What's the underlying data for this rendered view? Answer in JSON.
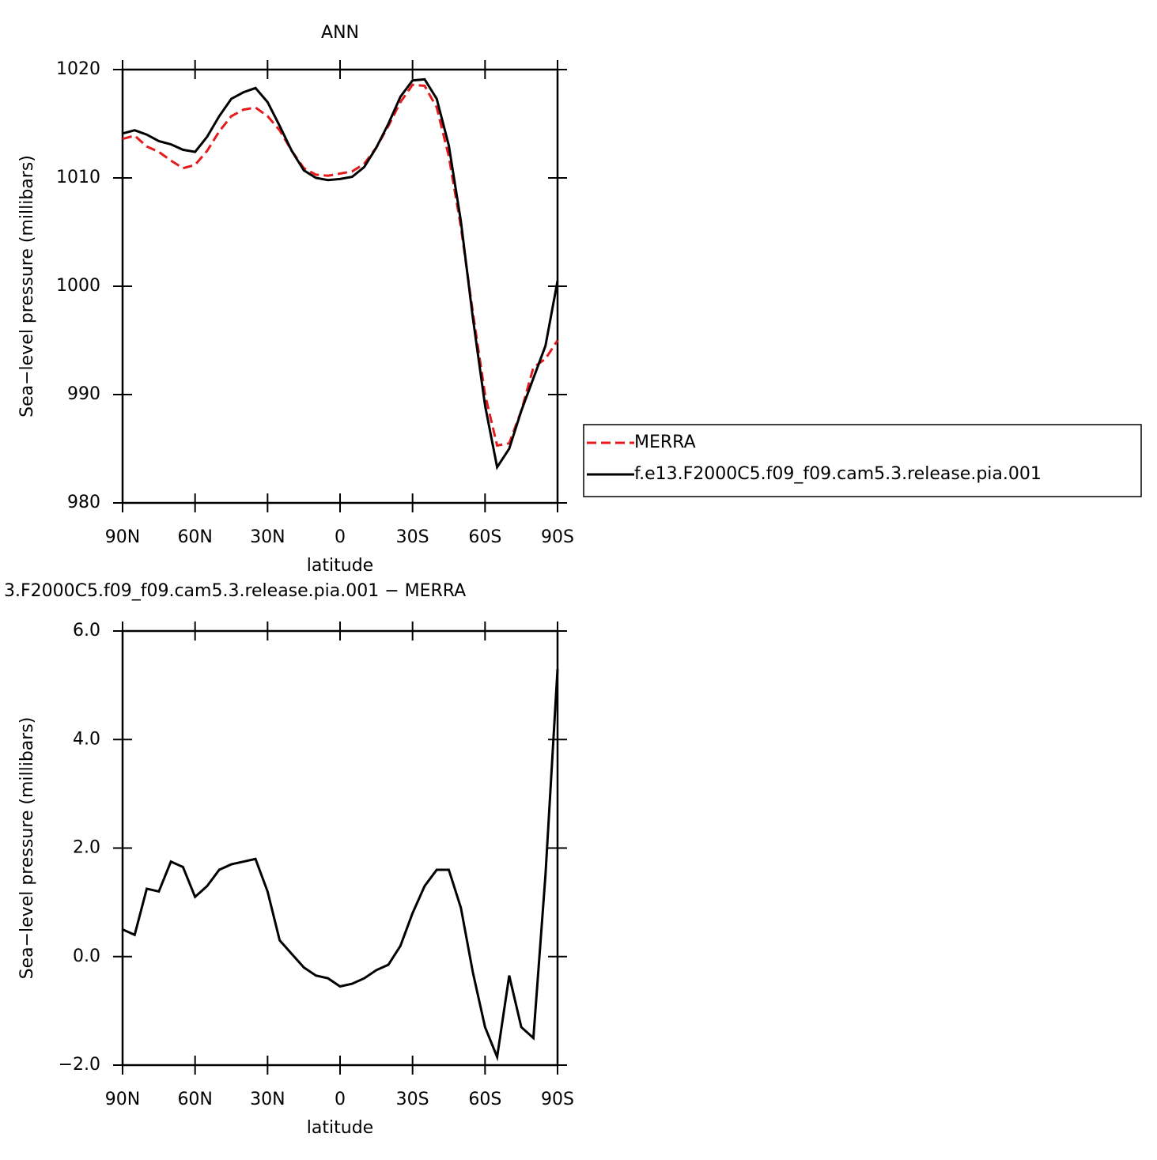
{
  "chart_data": [
    {
      "type": "line",
      "title": "ANN",
      "x_label": "latitude",
      "y_label": "Sea−level pressure (millibars)",
      "x": [
        90,
        85,
        80,
        75,
        70,
        65,
        60,
        55,
        50,
        45,
        40,
        35,
        30,
        25,
        20,
        15,
        10,
        5,
        0,
        -5,
        -10,
        -15,
        -20,
        -25,
        -30,
        -35,
        -40,
        -45,
        -50,
        -55,
        -60,
        -65,
        -70,
        -75,
        -80,
        -85,
        -90
      ],
      "series": [
        {
          "name": "MERRA",
          "color": "#e41a1c",
          "line_style": "dashed",
          "values": [
            1013.6,
            1013.9,
            1012.9,
            1012.4,
            1011.6,
            1010.9,
            1011.2,
            1012.5,
            1014.3,
            1015.7,
            1016.3,
            1016.5,
            1015.7,
            1014.4,
            1012.5,
            1010.9,
            1010.3,
            1010.2,
            1010.4,
            1010.6,
            1011.3,
            1012.8,
            1014.8,
            1017.0,
            1018.6,
            1018.5,
            1016.5,
            1012.0,
            1005.5,
            997.5,
            990.0,
            985.3,
            985.5,
            988.5,
            992.5,
            993.3,
            995.0
          ]
        },
        {
          "name": "f.e13.F2000C5.f09_f09.cam5.3.release.pia.001",
          "color": "#000000",
          "line_style": "solid",
          "values": [
            1014.1,
            1014.4,
            1014.0,
            1013.4,
            1013.1,
            1012.6,
            1012.4,
            1013.8,
            1015.7,
            1017.3,
            1017.9,
            1018.3,
            1017.0,
            1014.8,
            1012.5,
            1010.7,
            1010.0,
            1009.8,
            1009.9,
            1010.1,
            1011.0,
            1012.8,
            1015.0,
            1017.5,
            1019.0,
            1019.1,
            1017.3,
            1013.0,
            1006.0,
            997.0,
            989.0,
            983.3,
            985.0,
            988.5,
            991.5,
            994.5,
            1000.5
          ]
        }
      ],
      "xlim": [
        90,
        -90
      ],
      "xticks": [
        {
          "value": 90,
          "label": "90N"
        },
        {
          "value": 60,
          "label": "60N"
        },
        {
          "value": 30,
          "label": "30N"
        },
        0,
        {
          "value": -30,
          "label": "30S"
        },
        {
          "value": -60,
          "label": "60S"
        },
        {
          "value": -90,
          "label": "90S"
        }
      ],
      "ylim": [
        980,
        1020
      ],
      "yticks": [
        980,
        990,
        1000,
        1010,
        1020
      ],
      "legend": "right"
    },
    {
      "type": "line",
      "title": "3.F2000C5.f09_f09.cam5.3.release.pia.001  −  MERRA",
      "x_label": "latitude",
      "y_label": "Sea−level pressure (millibars)",
      "x": [
        90,
        85,
        80,
        75,
        70,
        65,
        60,
        55,
        50,
        45,
        40,
        35,
        30,
        25,
        20,
        15,
        10,
        5,
        0,
        -5,
        -10,
        -15,
        -20,
        -25,
        -30,
        -35,
        -40,
        -45,
        -50,
        -55,
        -60,
        -65,
        -70,
        -75,
        -80,
        -85,
        -90
      ],
      "values": [
        0.5,
        0.4,
        1.25,
        1.2,
        1.75,
        1.65,
        1.1,
        1.3,
        1.6,
        1.7,
        1.75,
        1.8,
        1.2,
        0.3,
        0.05,
        -0.2,
        -0.35,
        -0.4,
        -0.55,
        -0.5,
        -0.4,
        -0.25,
        -0.15,
        0.2,
        0.8,
        1.3,
        1.6,
        1.6,
        0.9,
        -0.3,
        -1.3,
        -1.85,
        -0.35,
        -1.3,
        -1.5,
        1.5,
        5.3
      ],
      "color": "#000000",
      "xlim": [
        90,
        -90
      ],
      "xticks": [
        {
          "value": 90,
          "label": "90N"
        },
        {
          "value": 60,
          "label": "60N"
        },
        {
          "value": 30,
          "label": "30N"
        },
        0,
        {
          "value": -30,
          "label": "30S"
        },
        {
          "value": -60,
          "label": "60S"
        },
        {
          "value": -90,
          "label": "90S"
        }
      ],
      "ylim": [
        -2,
        6
      ],
      "yticks": [
        {
          "value": -2,
          "label": "−2.0"
        },
        {
          "value": 0,
          "label": "0.0"
        },
        {
          "value": 2,
          "label": "2.0"
        },
        {
          "value": 4,
          "label": "4.0"
        },
        {
          "value": 6,
          "label": "6.0"
        }
      ]
    }
  ]
}
